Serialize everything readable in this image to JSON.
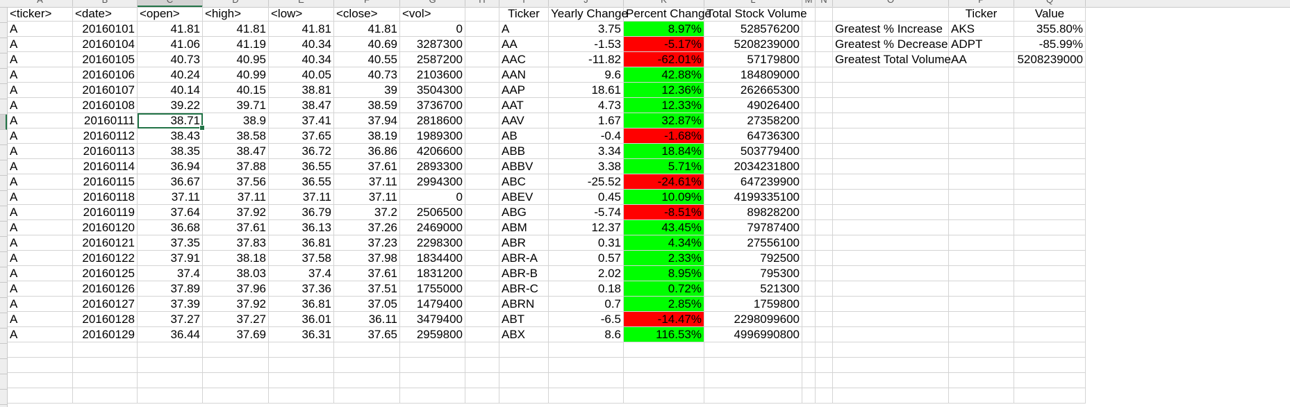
{
  "column_letters": [
    "A",
    "B",
    "C",
    "D",
    "E",
    "F",
    "G",
    "H",
    "I",
    "J",
    "K",
    "L",
    "M",
    "N",
    "O",
    "P",
    "Q"
  ],
  "colors": {
    "positive_fill": "#00ff00",
    "negative_fill": "#ff0000",
    "selection": "#217346"
  },
  "selected_cell": {
    "row": 7,
    "col": 2
  },
  "headers": [
    "<ticker>",
    "<date>",
    "<open>",
    "<high>",
    "<low>",
    "<close>",
    "<vol>",
    "",
    "Ticker",
    "Yearly Change",
    "Percent Change",
    "Total Stock Volume",
    "",
    "",
    "",
    "Ticker",
    "Value"
  ],
  "raw_rows": [
    [
      "A",
      "20160101",
      "41.81",
      "41.81",
      "41.81",
      "41.81",
      "0"
    ],
    [
      "A",
      "20160104",
      "41.06",
      "41.19",
      "40.34",
      "40.69",
      "3287300"
    ],
    [
      "A",
      "20160105",
      "40.73",
      "40.95",
      "40.34",
      "40.55",
      "2587200"
    ],
    [
      "A",
      "20160106",
      "40.24",
      "40.99",
      "40.05",
      "40.73",
      "2103600"
    ],
    [
      "A",
      "20160107",
      "40.14",
      "40.15",
      "38.81",
      "39",
      "3504300"
    ],
    [
      "A",
      "20160108",
      "39.22",
      "39.71",
      "38.47",
      "38.59",
      "3736700"
    ],
    [
      "A",
      "20160111",
      "38.71",
      "38.9",
      "37.41",
      "37.94",
      "2818600"
    ],
    [
      "A",
      "20160112",
      "38.43",
      "38.58",
      "37.65",
      "38.19",
      "1989300"
    ],
    [
      "A",
      "20160113",
      "38.35",
      "38.47",
      "36.72",
      "36.86",
      "4206600"
    ],
    [
      "A",
      "20160114",
      "36.94",
      "37.88",
      "36.55",
      "37.61",
      "2893300"
    ],
    [
      "A",
      "20160115",
      "36.67",
      "37.56",
      "36.55",
      "37.11",
      "2994300"
    ],
    [
      "A",
      "20160118",
      "37.11",
      "37.11",
      "37.11",
      "37.11",
      "0"
    ],
    [
      "A",
      "20160119",
      "37.64",
      "37.92",
      "36.79",
      "37.2",
      "2506500"
    ],
    [
      "A",
      "20160120",
      "36.68",
      "37.61",
      "36.13",
      "37.26",
      "2469000"
    ],
    [
      "A",
      "20160121",
      "37.35",
      "37.83",
      "36.81",
      "37.23",
      "2298300"
    ],
    [
      "A",
      "20160122",
      "37.91",
      "38.18",
      "37.58",
      "37.98",
      "1834400"
    ],
    [
      "A",
      "20160125",
      "37.4",
      "38.03",
      "37.4",
      "37.61",
      "1831200"
    ],
    [
      "A",
      "20160126",
      "37.89",
      "37.96",
      "37.36",
      "37.51",
      "1755000"
    ],
    [
      "A",
      "20160127",
      "37.39",
      "37.92",
      "36.81",
      "37.05",
      "1479400"
    ],
    [
      "A",
      "20160128",
      "37.27",
      "37.27",
      "36.01",
      "36.11",
      "3479400"
    ],
    [
      "A",
      "20160129",
      "36.44",
      "37.69",
      "36.31",
      "37.65",
      "2959800"
    ]
  ],
  "summary_rows": [
    [
      "A",
      "3.75",
      "8.97%",
      "528576200"
    ],
    [
      "AA",
      "-1.53",
      "-5.17%",
      "5208239000"
    ],
    [
      "AAC",
      "-11.82",
      "-62.01%",
      "57179800"
    ],
    [
      "AAN",
      "9.6",
      "42.88%",
      "184809000"
    ],
    [
      "AAP",
      "18.61",
      "12.36%",
      "262665300"
    ],
    [
      "AAT",
      "4.73",
      "12.33%",
      "49026400"
    ],
    [
      "AAV",
      "1.67",
      "32.87%",
      "27358200"
    ],
    [
      "AB",
      "-0.4",
      "-1.68%",
      "64736300"
    ],
    [
      "ABB",
      "3.34",
      "18.84%",
      "503779400"
    ],
    [
      "ABBV",
      "3.38",
      "5.71%",
      "2034231800"
    ],
    [
      "ABC",
      "-25.52",
      "-24.61%",
      "647239900"
    ],
    [
      "ABEV",
      "0.45",
      "10.09%",
      "4199335100"
    ],
    [
      "ABG",
      "-5.74",
      "-8.51%",
      "89828200"
    ],
    [
      "ABM",
      "12.37",
      "43.45%",
      "79787400"
    ],
    [
      "ABR",
      "0.31",
      "4.34%",
      "27556100"
    ],
    [
      "ABR-A",
      "0.57",
      "2.33%",
      "792500"
    ],
    [
      "ABR-B",
      "2.02",
      "8.95%",
      "795300"
    ],
    [
      "ABR-C",
      "0.18",
      "0.72%",
      "521300"
    ],
    [
      "ABRN",
      "0.7",
      "2.85%",
      "1759800"
    ],
    [
      "ABT",
      "-6.5",
      "-14.47%",
      "2298099600"
    ],
    [
      "ABX",
      "8.6",
      "116.53%",
      "4996990800"
    ]
  ],
  "greatest_rows": [
    [
      "Greatest % Increase",
      "AKS",
      "355.80%"
    ],
    [
      "Greatest % Decrease",
      "ADPT",
      "-85.99%"
    ],
    [
      "Greatest Total Volume",
      "AA",
      "5208239000"
    ]
  ]
}
